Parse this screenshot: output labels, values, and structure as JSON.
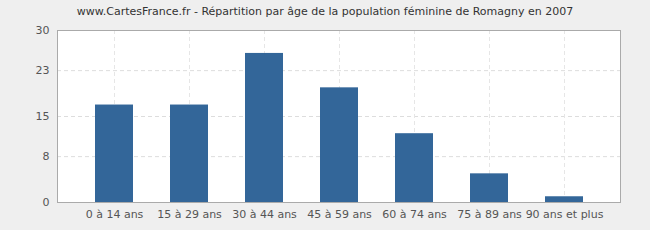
{
  "chart_data": {
    "type": "bar",
    "title": "www.CartesFrance.fr - Répartition par âge de la population féminine de Romagny en 2007",
    "categories": [
      "0 à 14 ans",
      "15 à 29 ans",
      "30 à 44 ans",
      "45 à 59 ans",
      "60 à 74 ans",
      "75 à 89 ans",
      "90 ans et plus"
    ],
    "values": [
      17,
      17,
      26,
      20,
      12,
      5,
      1
    ],
    "color": "#336699",
    "ylim": [
      0,
      30
    ],
    "yticks": [
      0,
      8,
      15,
      23,
      30
    ],
    "grid": true
  }
}
